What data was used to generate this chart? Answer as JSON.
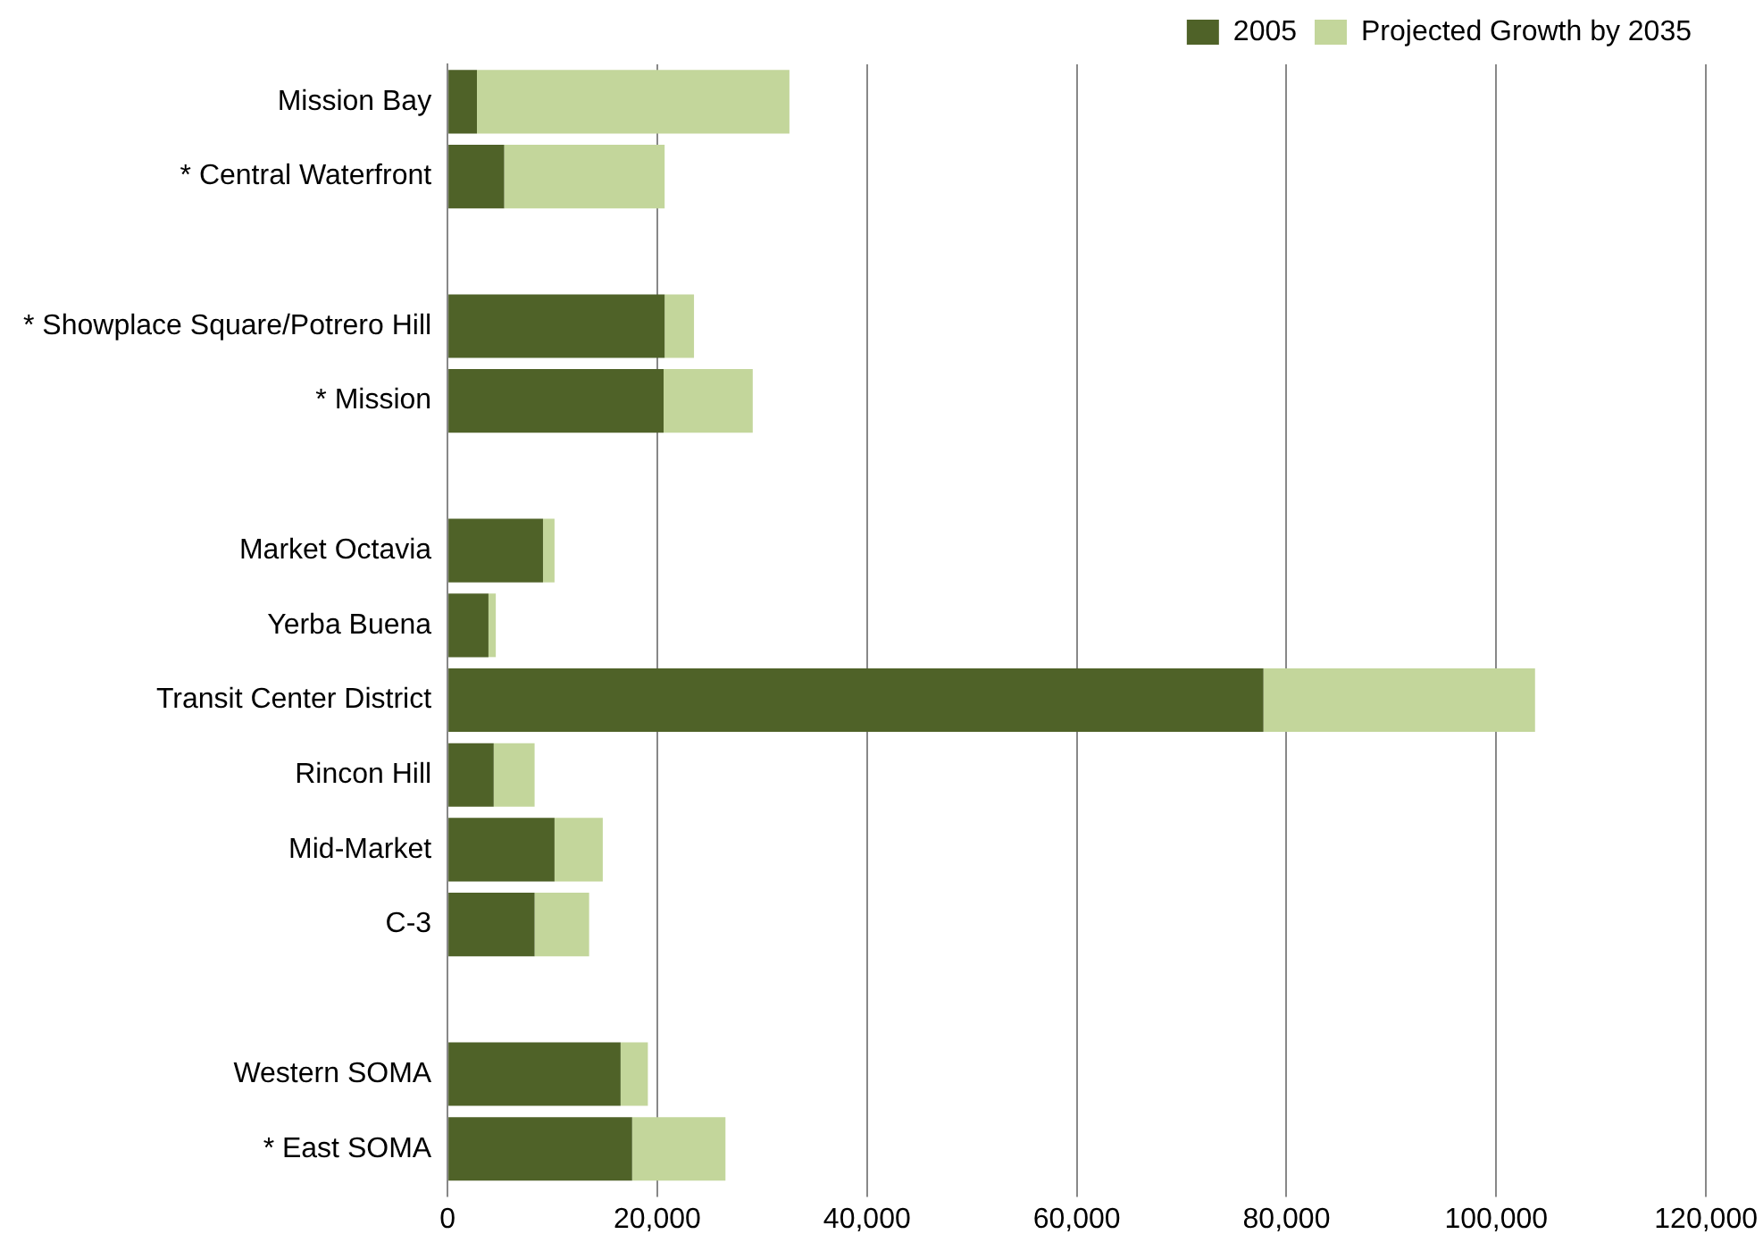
{
  "chart_data": {
    "type": "bar",
    "orientation": "horizontal",
    "stacked": true,
    "categories": [
      "Mission Bay",
      "* Central Waterfront",
      null,
      "* Showplace Square/Potrero Hill",
      "* Mission",
      null,
      "Market Octavia",
      "Yerba Buena",
      "Transit Center District",
      "Rincon Hill",
      "Mid-Market",
      "C-3",
      null,
      "Western SOMA",
      "* East SOMA"
    ],
    "series": [
      {
        "name": "2005",
        "color": "#4f6228",
        "values": [
          2800,
          5400,
          null,
          20700,
          20600,
          null,
          9100,
          3900,
          77800,
          4400,
          10200,
          8300,
          null,
          16500,
          17600
        ]
      },
      {
        "name": "Projected Growth by 2035",
        "color": "#c3d69b",
        "values": [
          29800,
          15300,
          null,
          2800,
          8500,
          null,
          1100,
          700,
          25900,
          3900,
          4600,
          5200,
          null,
          2600,
          8900
        ]
      }
    ],
    "xlim": [
      0,
      120000
    ],
    "xticks": [
      {
        "value": 0,
        "label": "0"
      },
      {
        "value": 20000,
        "label": "20,000"
      },
      {
        "value": 40000,
        "label": "40,000"
      },
      {
        "value": 60000,
        "label": "60,000"
      },
      {
        "value": 80000,
        "label": "80,000"
      },
      {
        "value": 100000,
        "label": "100,000"
      },
      {
        "value": 120000,
        "label": "120,000"
      }
    ],
    "grid": "x",
    "legend": "top right"
  }
}
